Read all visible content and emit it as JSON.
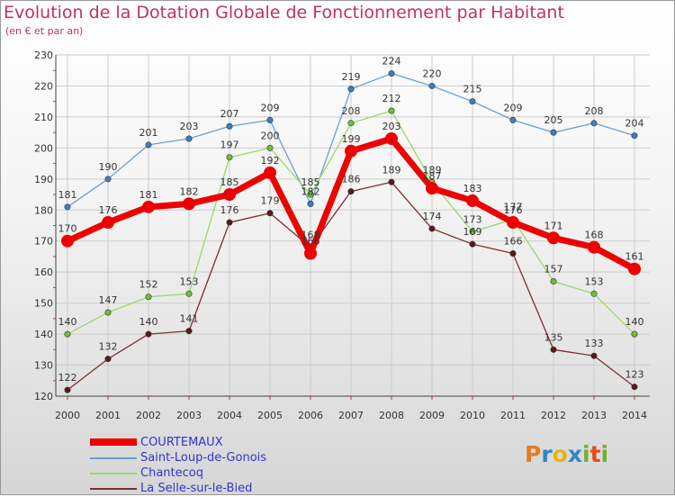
{
  "title": "Evolution de la Dotation Globale de Fonctionnement par Habitant",
  "subtitle": "(en € et par an)",
  "logo": {
    "letters": [
      "P",
      "r",
      "o",
      "x",
      "i",
      "t",
      "i"
    ],
    "colors": [
      "#e87a1e",
      "#2f87c8",
      "#e8b21e",
      "#2f87c8",
      "#6cb32e",
      "#e84a1e",
      "#6cb32e"
    ]
  },
  "chart_data": {
    "type": "line",
    "x": [
      "2000",
      "2001",
      "2002",
      "2003",
      "2004",
      "2005",
      "2006",
      "2007",
      "2008",
      "2009",
      "2010",
      "2011",
      "2012",
      "2013",
      "2014"
    ],
    "ylim": [
      120,
      230
    ],
    "yticks": [
      120,
      130,
      140,
      150,
      160,
      170,
      180,
      190,
      200,
      210,
      220,
      230
    ],
    "grid": true,
    "legend": "bottom",
    "series": [
      {
        "name": "Saint-Loup-de-Gonois",
        "color": "#6a9fd0",
        "marker": "#3a7fc0",
        "values": [
          181,
          190,
          201,
          203,
          207,
          209,
          182,
          219,
          224,
          220,
          215,
          209,
          205,
          208,
          204
        ],
        "labels": [
          "181",
          "190",
          "201",
          "203",
          "207",
          "209",
          "182",
          "219",
          "224",
          "220",
          "215",
          "209",
          "205",
          "208",
          "204"
        ]
      },
      {
        "name": "Chantecoq",
        "color": "#99d966",
        "marker": "#6cc03a",
        "values": [
          140,
          147,
          152,
          153,
          197,
          200,
          185,
          208,
          212,
          189,
          173,
          177,
          157,
          153,
          140
        ],
        "labels": [
          "140",
          "147",
          "152",
          "153",
          "197",
          "200",
          "185",
          "208",
          "212",
          "189",
          "173",
          "177",
          "157",
          "153",
          "140"
        ]
      },
      {
        "name": "La Selle-sur-le-Bied",
        "color": "#7a3030",
        "marker": "#5a1a1a",
        "values": [
          122,
          132,
          140,
          141,
          176,
          179,
          168,
          186,
          189,
          174,
          169,
          166,
          135,
          133,
          123
        ],
        "labels": [
          "122",
          "132",
          "140",
          "141",
          "176",
          "179",
          "168",
          "186",
          "189",
          "174",
          "169",
          "166",
          "135",
          "133",
          "123"
        ]
      },
      {
        "name": "COURTEMAUX",
        "color": "#ee0000",
        "marker": "#ee0000",
        "values": [
          170,
          176,
          181,
          182,
          185,
          192,
          166,
          199,
          203,
          187,
          183,
          176,
          171,
          168,
          161
        ],
        "labels": [
          "170",
          "176",
          "181",
          "182",
          "185",
          "192",
          "166",
          "199",
          "203",
          "187",
          "183",
          "176",
          "171",
          "168",
          "161"
        ]
      }
    ]
  }
}
